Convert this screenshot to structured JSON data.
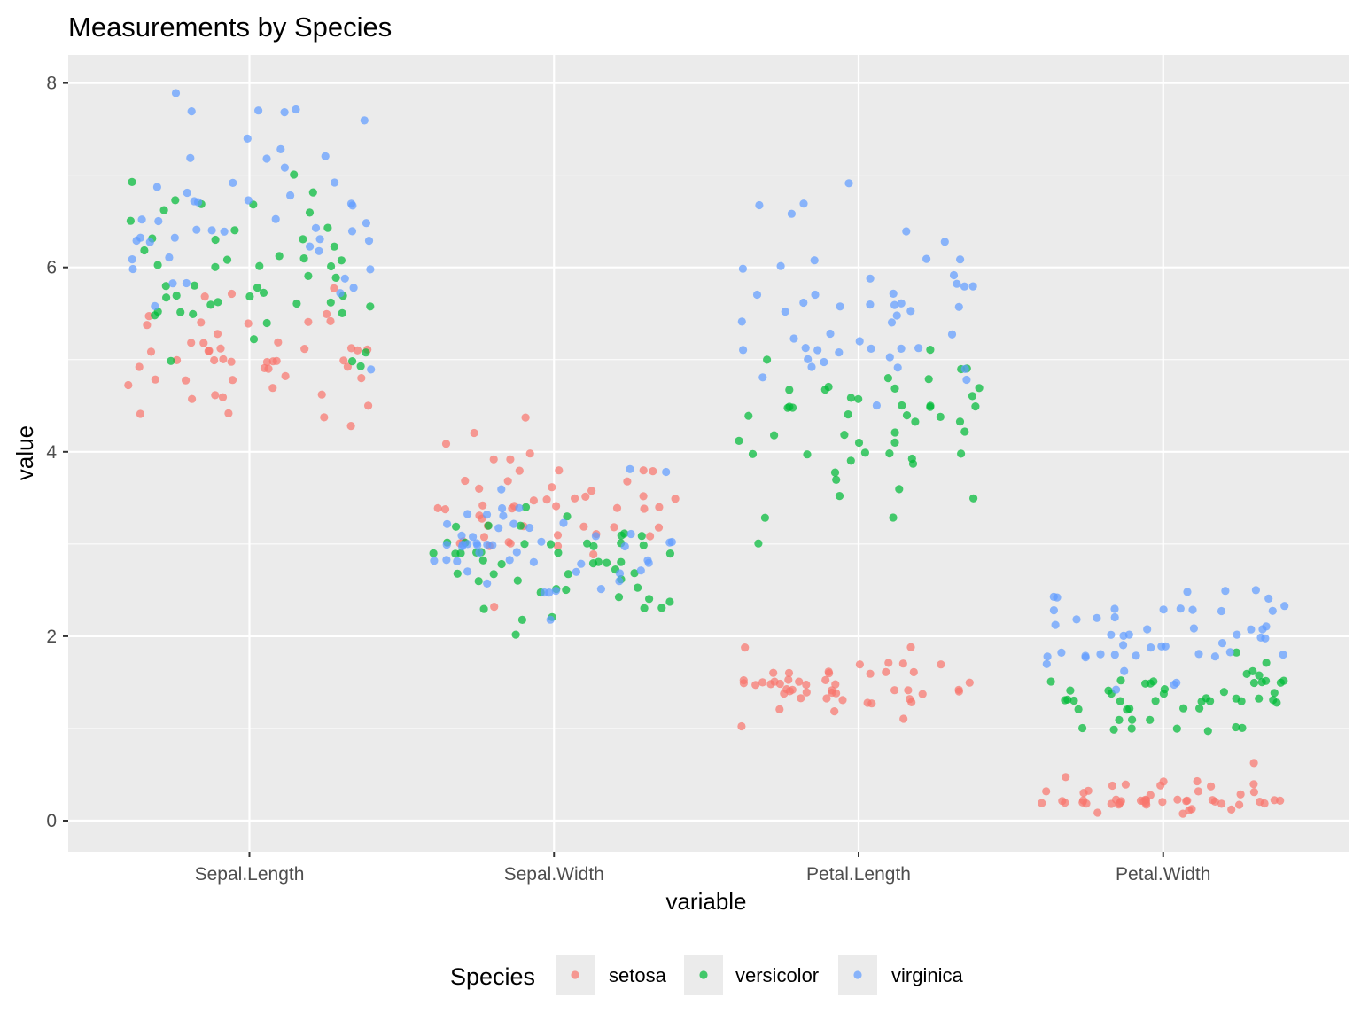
{
  "chart_data": {
    "type": "scatter",
    "title": "Measurements by Species",
    "xlabel": "variable",
    "ylabel": "value",
    "categories": [
      "Sepal.Length",
      "Sepal.Width",
      "Petal.Length",
      "Petal.Width"
    ],
    "ylim": [
      -0.65,
      8.3
    ],
    "yticks": [
      0,
      2,
      4,
      6,
      8
    ],
    "grid": true,
    "jitter": "horizontal",
    "legend": {
      "title": "Species",
      "position": "bottom"
    },
    "series": [
      {
        "name": "setosa",
        "color": "#F8766D",
        "values": {
          "Sepal.Length": [
            5.1,
            4.9,
            4.7,
            4.6,
            5.0,
            5.4,
            4.6,
            5.0,
            4.4,
            4.9,
            5.4,
            4.8,
            4.8,
            4.3,
            5.8,
            5.7,
            5.4,
            5.1,
            5.7,
            5.1,
            5.4,
            5.1,
            4.6,
            5.1,
            4.8,
            5.0,
            5.0,
            5.2,
            5.2,
            4.7,
            4.8,
            5.4,
            5.2,
            5.5,
            4.9,
            5.0,
            5.5,
            4.9,
            4.4,
            5.1,
            5.0,
            4.5,
            4.4,
            5.0,
            5.1,
            4.8,
            5.1,
            4.6,
            5.3,
            5.0
          ],
          "Sepal.Width": [
            3.5,
            3.0,
            3.2,
            3.1,
            3.6,
            3.9,
            3.4,
            3.4,
            2.9,
            3.1,
            3.7,
            3.4,
            3.0,
            3.0,
            4.0,
            4.4,
            3.9,
            3.5,
            3.8,
            3.8,
            3.4,
            3.7,
            3.6,
            3.3,
            3.4,
            3.0,
            3.4,
            3.5,
            3.4,
            3.2,
            3.1,
            3.4,
            4.1,
            4.2,
            3.1,
            3.2,
            3.5,
            3.6,
            3.0,
            3.4,
            3.5,
            2.3,
            3.2,
            3.5,
            3.8,
            3.0,
            3.8,
            3.2,
            3.7,
            3.3
          ],
          "Petal.Length": [
            1.4,
            1.4,
            1.3,
            1.5,
            1.4,
            1.7,
            1.4,
            1.5,
            1.4,
            1.5,
            1.5,
            1.6,
            1.4,
            1.1,
            1.2,
            1.5,
            1.3,
            1.4,
            1.7,
            1.5,
            1.7,
            1.5,
            1.0,
            1.7,
            1.9,
            1.6,
            1.6,
            1.5,
            1.4,
            1.6,
            1.6,
            1.5,
            1.5,
            1.4,
            1.5,
            1.2,
            1.3,
            1.4,
            1.3,
            1.5,
            1.3,
            1.3,
            1.3,
            1.6,
            1.9,
            1.4,
            1.6,
            1.4,
            1.5,
            1.4
          ],
          "Petal.Width": [
            0.2,
            0.2,
            0.2,
            0.2,
            0.2,
            0.4,
            0.3,
            0.2,
            0.2,
            0.1,
            0.2,
            0.2,
            0.1,
            0.1,
            0.2,
            0.4,
            0.4,
            0.3,
            0.3,
            0.3,
            0.2,
            0.4,
            0.2,
            0.5,
            0.2,
            0.2,
            0.4,
            0.2,
            0.2,
            0.2,
            0.2,
            0.4,
            0.1,
            0.2,
            0.2,
            0.2,
            0.2,
            0.1,
            0.2,
            0.2,
            0.3,
            0.3,
            0.2,
            0.6,
            0.4,
            0.3,
            0.2,
            0.2,
            0.2,
            0.2
          ]
        }
      },
      {
        "name": "versicolor",
        "color": "#00BA38",
        "values": {
          "Sepal.Length": [
            7.0,
            6.4,
            6.9,
            5.5,
            6.5,
            5.7,
            6.3,
            4.9,
            6.6,
            5.2,
            5.0,
            5.9,
            6.0,
            6.1,
            5.6,
            6.7,
            5.6,
            5.8,
            6.2,
            5.6,
            5.9,
            6.1,
            6.3,
            6.1,
            6.4,
            6.6,
            6.8,
            6.7,
            6.0,
            5.7,
            5.5,
            5.5,
            5.8,
            6.0,
            5.4,
            6.0,
            6.7,
            6.3,
            5.6,
            5.5,
            5.5,
            6.1,
            5.8,
            5.0,
            5.6,
            5.7,
            5.7,
            6.2,
            5.1,
            5.7
          ],
          "Sepal.Width": [
            3.2,
            3.2,
            3.1,
            2.3,
            2.8,
            2.8,
            3.3,
            2.4,
            2.9,
            2.7,
            2.0,
            3.0,
            2.2,
            2.9,
            2.9,
            3.1,
            3.0,
            2.7,
            2.2,
            2.5,
            3.2,
            2.8,
            2.5,
            2.8,
            2.9,
            3.0,
            2.8,
            3.0,
            2.9,
            2.6,
            2.4,
            2.4,
            2.7,
            2.7,
            3.0,
            3.4,
            3.1,
            2.3,
            3.0,
            2.5,
            2.6,
            3.0,
            2.6,
            2.3,
            2.7,
            3.0,
            2.9,
            2.9,
            2.5,
            2.8
          ],
          "Petal.Length": [
            4.7,
            4.5,
            4.9,
            4.0,
            4.6,
            4.5,
            4.7,
            3.3,
            4.6,
            3.9,
            3.5,
            4.2,
            4.0,
            4.7,
            3.6,
            4.4,
            4.5,
            4.1,
            4.5,
            3.9,
            4.8,
            4.0,
            4.9,
            4.7,
            4.3,
            4.4,
            4.8,
            5.0,
            4.5,
            3.5,
            3.8,
            3.7,
            3.9,
            5.1,
            4.5,
            4.5,
            4.7,
            4.4,
            4.1,
            4.0,
            4.4,
            4.6,
            4.0,
            3.3,
            4.2,
            4.2,
            4.2,
            4.3,
            3.0,
            4.1
          ],
          "Petal.Width": [
            1.4,
            1.5,
            1.5,
            1.3,
            1.5,
            1.3,
            1.6,
            1.0,
            1.3,
            1.4,
            1.0,
            1.5,
            1.0,
            1.4,
            1.3,
            1.4,
            1.5,
            1.0,
            1.5,
            1.1,
            1.8,
            1.3,
            1.5,
            1.2,
            1.3,
            1.4,
            1.4,
            1.7,
            1.5,
            1.0,
            1.1,
            1.0,
            1.2,
            1.6,
            1.5,
            1.6,
            1.5,
            1.3,
            1.3,
            1.3,
            1.2,
            1.4,
            1.2,
            1.0,
            1.3,
            1.2,
            1.3,
            1.3,
            1.1,
            1.3
          ]
        }
      },
      {
        "name": "virginica",
        "color": "#619CFF",
        "values": {
          "Sepal.Length": [
            6.3,
            5.8,
            7.1,
            6.3,
            6.5,
            7.6,
            4.9,
            7.3,
            6.7,
            7.2,
            6.5,
            6.4,
            6.8,
            5.7,
            5.8,
            6.4,
            6.5,
            7.7,
            7.7,
            6.0,
            6.9,
            5.6,
            7.7,
            6.3,
            6.7,
            7.2,
            6.2,
            6.1,
            6.4,
            7.2,
            7.4,
            7.9,
            6.4,
            6.3,
            6.1,
            7.7,
            6.3,
            6.4,
            6.0,
            6.9,
            6.7,
            6.9,
            5.8,
            6.8,
            6.7,
            6.7,
            6.3,
            6.5,
            6.2,
            5.9
          ],
          "Sepal.Width": [
            3.3,
            2.7,
            3.0,
            2.9,
            3.0,
            3.0,
            2.5,
            2.9,
            2.5,
            3.6,
            3.2,
            2.7,
            3.0,
            2.5,
            2.8,
            3.2,
            3.0,
            3.8,
            2.6,
            2.2,
            3.2,
            2.8,
            2.8,
            2.7,
            3.3,
            3.2,
            2.8,
            3.0,
            2.8,
            3.0,
            2.8,
            3.8,
            2.8,
            2.8,
            2.6,
            3.0,
            3.4,
            3.1,
            3.0,
            3.1,
            3.1,
            3.1,
            2.7,
            3.2,
            3.3,
            3.0,
            2.5,
            3.0,
            3.4,
            3.0
          ],
          "Petal.Length": [
            6.0,
            5.1,
            5.9,
            5.6,
            5.8,
            6.6,
            4.5,
            6.3,
            5.8,
            6.1,
            5.1,
            5.3,
            5.5,
            5.0,
            5.1,
            5.3,
            5.5,
            6.7,
            6.9,
            5.0,
            5.7,
            4.9,
            6.7,
            4.9,
            5.7,
            6.0,
            4.8,
            4.9,
            5.6,
            5.8,
            6.1,
            6.4,
            5.6,
            5.1,
            5.6,
            6.1,
            5.6,
            5.5,
            4.8,
            5.4,
            5.6,
            5.1,
            5.1,
            5.9,
            5.7,
            5.2,
            5.0,
            5.2,
            5.4,
            5.1
          ],
          "Petal.Width": [
            2.5,
            1.9,
            2.1,
            1.8,
            2.2,
            2.1,
            1.7,
            1.8,
            1.8,
            2.5,
            2.0,
            1.9,
            2.1,
            2.0,
            2.4,
            2.3,
            1.8,
            2.2,
            2.3,
            1.5,
            2.3,
            2.0,
            2.0,
            1.8,
            2.1,
            1.8,
            1.8,
            1.8,
            2.1,
            1.6,
            1.9,
            2.0,
            2.2,
            1.5,
            1.4,
            2.3,
            2.4,
            1.8,
            1.8,
            2.1,
            2.4,
            2.3,
            1.9,
            2.3,
            2.5,
            2.3,
            1.9,
            2.0,
            2.3,
            1.8
          ]
        }
      }
    ]
  }
}
